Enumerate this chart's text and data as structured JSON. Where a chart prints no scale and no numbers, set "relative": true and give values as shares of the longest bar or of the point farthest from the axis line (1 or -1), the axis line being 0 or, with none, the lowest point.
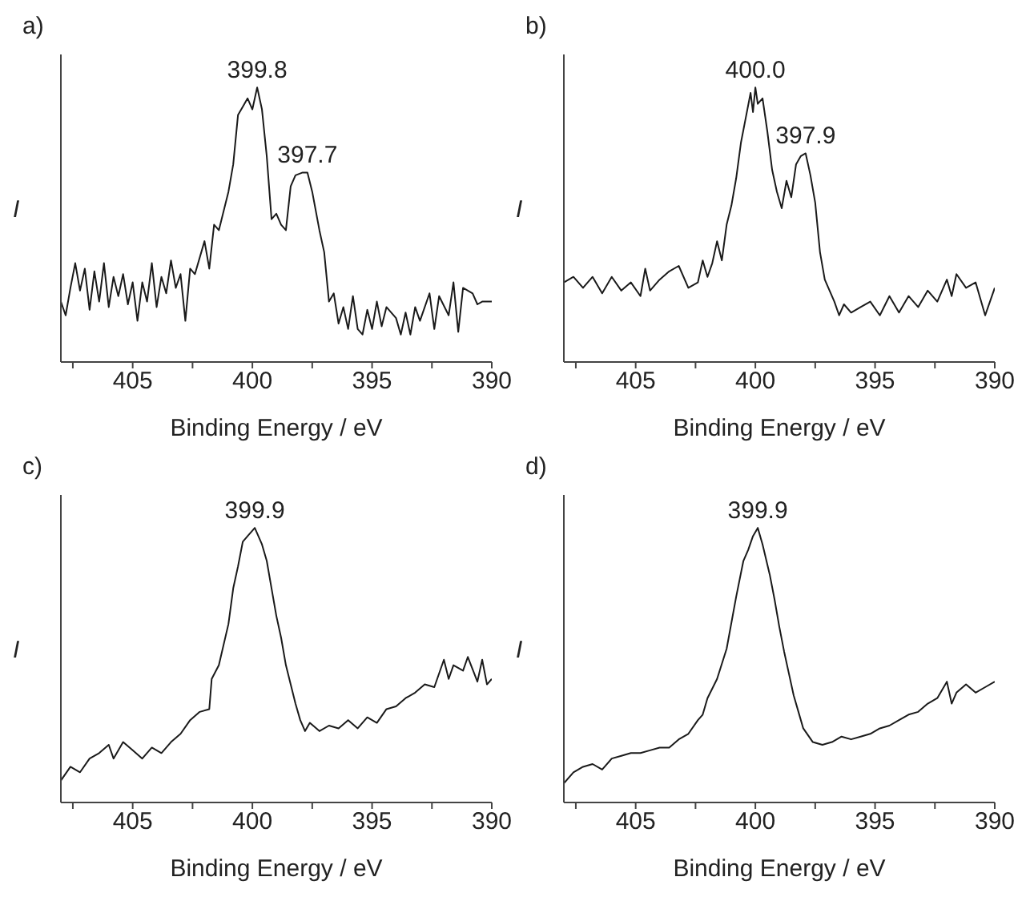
{
  "chart_data": [
    {
      "type": "line",
      "title": "a)",
      "xlabel": "Binding Energy / eV",
      "ylabel": "I",
      "relative": true,
      "color": "#1a1a1a",
      "xlim": [
        408,
        390
      ],
      "xticks": [
        {
          "value": 407.5,
          "label": null
        },
        405,
        {
          "value": 402.5,
          "label": null
        },
        400,
        {
          "value": 397.5,
          "label": null
        },
        395,
        {
          "value": 392.5,
          "label": null
        },
        390
      ],
      "x": [
        408.0,
        407.8,
        407.6,
        407.4,
        407.2,
        407.0,
        406.8,
        406.6,
        406.4,
        406.2,
        406.0,
        405.8,
        405.6,
        405.4,
        405.2,
        405.0,
        404.8,
        404.6,
        404.4,
        404.2,
        404.0,
        403.8,
        403.6,
        403.4,
        403.2,
        403.0,
        402.8,
        402.6,
        402.4,
        402.0,
        401.8,
        401.6,
        401.4,
        401.0,
        400.8,
        400.6,
        400.4,
        400.2,
        400.0,
        399.8,
        399.6,
        399.4,
        399.2,
        399.0,
        398.8,
        398.6,
        398.4,
        398.2,
        397.9,
        397.7,
        397.5,
        397.2,
        397.0,
        396.8,
        396.6,
        396.4,
        396.2,
        396.0,
        395.8,
        395.6,
        395.4,
        395.2,
        395.0,
        394.8,
        394.6,
        394.4,
        394.0,
        393.8,
        393.6,
        393.4,
        393.2,
        393.0,
        392.6,
        392.4,
        392.2,
        391.8,
        391.6,
        391.4,
        391.2,
        390.8,
        390.6,
        390.4,
        390.0
      ],
      "values": [
        0.22,
        0.17,
        0.27,
        0.36,
        0.26,
        0.34,
        0.19,
        0.33,
        0.22,
        0.36,
        0.2,
        0.31,
        0.24,
        0.32,
        0.21,
        0.29,
        0.15,
        0.29,
        0.22,
        0.36,
        0.2,
        0.31,
        0.25,
        0.37,
        0.27,
        0.32,
        0.15,
        0.34,
        0.32,
        0.44,
        0.34,
        0.5,
        0.48,
        0.62,
        0.72,
        0.9,
        0.93,
        0.96,
        0.92,
        1.0,
        0.92,
        0.75,
        0.52,
        0.54,
        0.5,
        0.48,
        0.64,
        0.68,
        0.69,
        0.69,
        0.62,
        0.48,
        0.4,
        0.22,
        0.25,
        0.14,
        0.2,
        0.12,
        0.24,
        0.12,
        0.1,
        0.19,
        0.12,
        0.22,
        0.13,
        0.2,
        0.16,
        0.1,
        0.18,
        0.1,
        0.2,
        0.15,
        0.25,
        0.12,
        0.24,
        0.17,
        0.29,
        0.11,
        0.27,
        0.25,
        0.21,
        0.22,
        0.22
      ],
      "annotations": [
        {
          "text": "399.8",
          "x": 399.8,
          "y": 1.0
        },
        {
          "text": "397.7",
          "x": 397.7,
          "y": 0.69
        }
      ]
    },
    {
      "type": "line",
      "title": "b)",
      "xlabel": "Binding Energy / eV",
      "ylabel": "I",
      "relative": true,
      "color": "#1a1a1a",
      "xlim": [
        408,
        390
      ],
      "xticks": [
        {
          "value": 407.5,
          "label": null
        },
        405,
        {
          "value": 402.5,
          "label": null
        },
        400,
        {
          "value": 397.5,
          "label": null
        },
        395,
        {
          "value": 392.5,
          "label": null
        },
        390
      ],
      "x": [
        408.0,
        407.6,
        407.2,
        406.8,
        406.4,
        406.0,
        405.6,
        405.2,
        404.8,
        404.6,
        404.4,
        404.0,
        403.6,
        403.2,
        402.8,
        402.4,
        402.2,
        402.0,
        401.8,
        401.6,
        401.4,
        401.2,
        401.0,
        400.8,
        400.6,
        400.4,
        400.2,
        400.1,
        400.0,
        399.9,
        399.7,
        399.5,
        399.3,
        399.1,
        398.9,
        398.7,
        398.5,
        398.3,
        398.1,
        397.9,
        397.7,
        397.5,
        397.3,
        397.1,
        396.9,
        396.7,
        396.5,
        396.3,
        396.0,
        395.6,
        395.2,
        394.8,
        394.4,
        394.0,
        393.6,
        393.2,
        392.8,
        392.4,
        392.0,
        391.8,
        391.6,
        391.2,
        390.8,
        390.4,
        390.0
      ],
      "values": [
        0.29,
        0.31,
        0.27,
        0.31,
        0.25,
        0.31,
        0.26,
        0.29,
        0.24,
        0.34,
        0.26,
        0.3,
        0.33,
        0.35,
        0.27,
        0.29,
        0.37,
        0.31,
        0.36,
        0.44,
        0.37,
        0.5,
        0.57,
        0.67,
        0.8,
        0.89,
        0.98,
        0.91,
        1.0,
        0.94,
        0.96,
        0.84,
        0.7,
        0.62,
        0.56,
        0.66,
        0.6,
        0.72,
        0.75,
        0.76,
        0.68,
        0.58,
        0.4,
        0.3,
        0.26,
        0.22,
        0.17,
        0.21,
        0.18,
        0.2,
        0.22,
        0.17,
        0.24,
        0.18,
        0.24,
        0.2,
        0.26,
        0.22,
        0.3,
        0.24,
        0.32,
        0.27,
        0.29,
        0.17,
        0.27
      ],
      "annotations": [
        {
          "text": "400.0",
          "x": 400.0,
          "y": 1.0
        },
        {
          "text": "397.9",
          "x": 397.9,
          "y": 0.76
        }
      ]
    },
    {
      "type": "line",
      "title": "c)",
      "xlabel": "Binding Energy / eV",
      "ylabel": "I",
      "relative": true,
      "color": "#1a1a1a",
      "xlim": [
        408,
        390
      ],
      "xticks": [
        {
          "value": 407.5,
          "label": null
        },
        405,
        {
          "value": 402.5,
          "label": null
        },
        400,
        {
          "value": 397.5,
          "label": null
        },
        395,
        {
          "value": 392.5,
          "label": null
        },
        390
      ],
      "x": [
        408.0,
        407.6,
        407.2,
        406.8,
        406.4,
        406.0,
        405.8,
        405.4,
        405.0,
        404.6,
        404.2,
        403.8,
        403.4,
        403.0,
        402.6,
        402.2,
        401.8,
        401.7,
        401.4,
        401.0,
        400.8,
        400.6,
        400.4,
        400.2,
        399.9,
        399.6,
        399.4,
        399.2,
        399.0,
        398.8,
        398.6,
        398.4,
        398.2,
        398.0,
        397.8,
        397.6,
        397.2,
        396.8,
        396.4,
        396.0,
        395.6,
        395.2,
        394.8,
        394.4,
        394.0,
        393.6,
        393.2,
        392.8,
        392.4,
        392.0,
        391.8,
        391.6,
        391.2,
        391.0,
        390.6,
        390.4,
        390.2,
        390.0
      ],
      "values": [
        0.08,
        0.13,
        0.11,
        0.16,
        0.18,
        0.21,
        0.16,
        0.22,
        0.19,
        0.16,
        0.2,
        0.18,
        0.22,
        0.25,
        0.3,
        0.33,
        0.34,
        0.45,
        0.5,
        0.65,
        0.78,
        0.86,
        0.95,
        0.97,
        1.0,
        0.94,
        0.88,
        0.78,
        0.68,
        0.6,
        0.5,
        0.43,
        0.36,
        0.3,
        0.26,
        0.29,
        0.26,
        0.28,
        0.27,
        0.3,
        0.27,
        0.31,
        0.29,
        0.34,
        0.35,
        0.38,
        0.4,
        0.43,
        0.42,
        0.52,
        0.45,
        0.5,
        0.48,
        0.53,
        0.44,
        0.52,
        0.43,
        0.45
      ],
      "annotations": [
        {
          "text": "399.9",
          "x": 399.9,
          "y": 1.0
        }
      ]
    },
    {
      "type": "line",
      "title": "d)",
      "xlabel": "Binding Energy / eV",
      "ylabel": "I",
      "relative": true,
      "color": "#1a1a1a",
      "xlim": [
        408,
        390
      ],
      "xticks": [
        {
          "value": 407.5,
          "label": null
        },
        405,
        {
          "value": 402.5,
          "label": null
        },
        400,
        {
          "value": 397.5,
          "label": null
        },
        395,
        {
          "value": 392.5,
          "label": null
        },
        390
      ],
      "x": [
        408.0,
        407.6,
        407.2,
        406.8,
        406.4,
        406.0,
        405.6,
        405.2,
        404.8,
        404.4,
        404.0,
        403.6,
        403.2,
        402.8,
        402.4,
        402.2,
        402.0,
        401.6,
        401.2,
        400.8,
        400.5,
        400.3,
        400.1,
        399.9,
        399.7,
        399.4,
        399.2,
        399.0,
        398.8,
        398.6,
        398.4,
        398.2,
        398.0,
        397.6,
        397.2,
        396.8,
        396.4,
        396.0,
        395.6,
        395.2,
        394.8,
        394.4,
        394.0,
        393.6,
        393.2,
        392.8,
        392.4,
        392.0,
        391.8,
        391.6,
        391.2,
        390.8,
        390.4,
        390.0
      ],
      "values": [
        0.07,
        0.11,
        0.13,
        0.14,
        0.12,
        0.16,
        0.17,
        0.18,
        0.18,
        0.19,
        0.2,
        0.2,
        0.23,
        0.25,
        0.3,
        0.32,
        0.38,
        0.45,
        0.56,
        0.75,
        0.88,
        0.92,
        0.97,
        1.0,
        0.94,
        0.83,
        0.74,
        0.64,
        0.55,
        0.47,
        0.39,
        0.33,
        0.27,
        0.22,
        0.21,
        0.22,
        0.24,
        0.23,
        0.24,
        0.25,
        0.27,
        0.28,
        0.3,
        0.32,
        0.33,
        0.36,
        0.38,
        0.44,
        0.36,
        0.4,
        0.43,
        0.4,
        0.42,
        0.44
      ],
      "annotations": [
        {
          "text": "399.9",
          "x": 399.9,
          "y": 1.0
        }
      ]
    }
  ]
}
